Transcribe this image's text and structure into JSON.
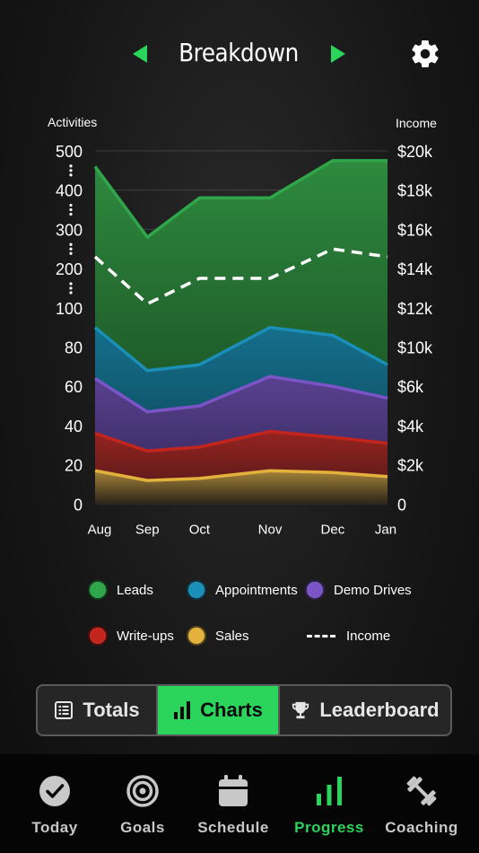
{
  "header": {
    "title": "Breakdown"
  },
  "colors": {
    "accent": "#2bd45a",
    "leads": "#2fa64a",
    "appointments": "#1a8fb8",
    "demo_drives": "#7b55c8",
    "write_ups": "#c3251d",
    "sales": "#e3b23c",
    "income": "#ffffff"
  },
  "chart_data": {
    "type": "area",
    "left_axis_title": "Activities",
    "right_axis_title": "Income",
    "left_ticks": [
      "500",
      "400",
      "300",
      "200",
      "100",
      "80",
      "60",
      "40",
      "20",
      "0"
    ],
    "right_ticks": [
      "$20k",
      "$18k",
      "$16k",
      "$14k",
      "$12k",
      "$10k",
      "$6k",
      "$4k",
      "$2k",
      "0"
    ],
    "x": [
      "Aug",
      "Sep",
      "Oct",
      "Nov",
      "Dec",
      "Jan"
    ],
    "x_positions": [
      0,
      1,
      2,
      3.35,
      4.55,
      5.6
    ],
    "series": [
      {
        "name": "Leads",
        "color_key": "leads",
        "values": [
          460,
          280,
          380,
          380,
          475,
          475
        ]
      },
      {
        "name": "Appointments",
        "color_key": "appointments",
        "values": [
          90,
          68,
          71,
          90,
          86,
          71
        ]
      },
      {
        "name": "Demo Drives",
        "color_key": "demo_drives",
        "values": [
          64,
          47,
          50,
          65,
          60,
          54
        ]
      },
      {
        "name": "Write-ups",
        "color_key": "write_ups",
        "values": [
          36,
          27,
          29,
          37,
          34,
          31
        ]
      },
      {
        "name": "Sales",
        "color_key": "sales",
        "values": [
          17,
          12,
          13,
          17,
          16,
          14
        ]
      }
    ],
    "income": {
      "name": "Income",
      "values": [
        14.6,
        12.2,
        13.5,
        13.5,
        15.0,
        14.6
      ]
    },
    "legend_position": "bottom",
    "grid": true
  },
  "legend": [
    {
      "label": "Leads",
      "color_key": "leads"
    },
    {
      "label": "Appointments",
      "color_key": "appointments"
    },
    {
      "label": "Demo Drives",
      "color_key": "demo_drives"
    },
    {
      "label": "Write-ups",
      "color_key": "write_ups"
    },
    {
      "label": "Sales",
      "color_key": "sales"
    },
    {
      "label": "Income",
      "dashed": true
    }
  ],
  "segmented": {
    "totals": "Totals",
    "charts": "Charts",
    "leaderboard": "Leaderboard",
    "selected": "Charts"
  },
  "tabbar": {
    "items": [
      {
        "label": "Today",
        "icon": "check-circle-icon"
      },
      {
        "label": "Goals",
        "icon": "target-icon"
      },
      {
        "label": "Schedule",
        "icon": "calendar-icon"
      },
      {
        "label": "Progress",
        "icon": "bar-chart-icon",
        "active": true
      },
      {
        "label": "Coaching",
        "icon": "dumbbell-icon"
      }
    ]
  }
}
